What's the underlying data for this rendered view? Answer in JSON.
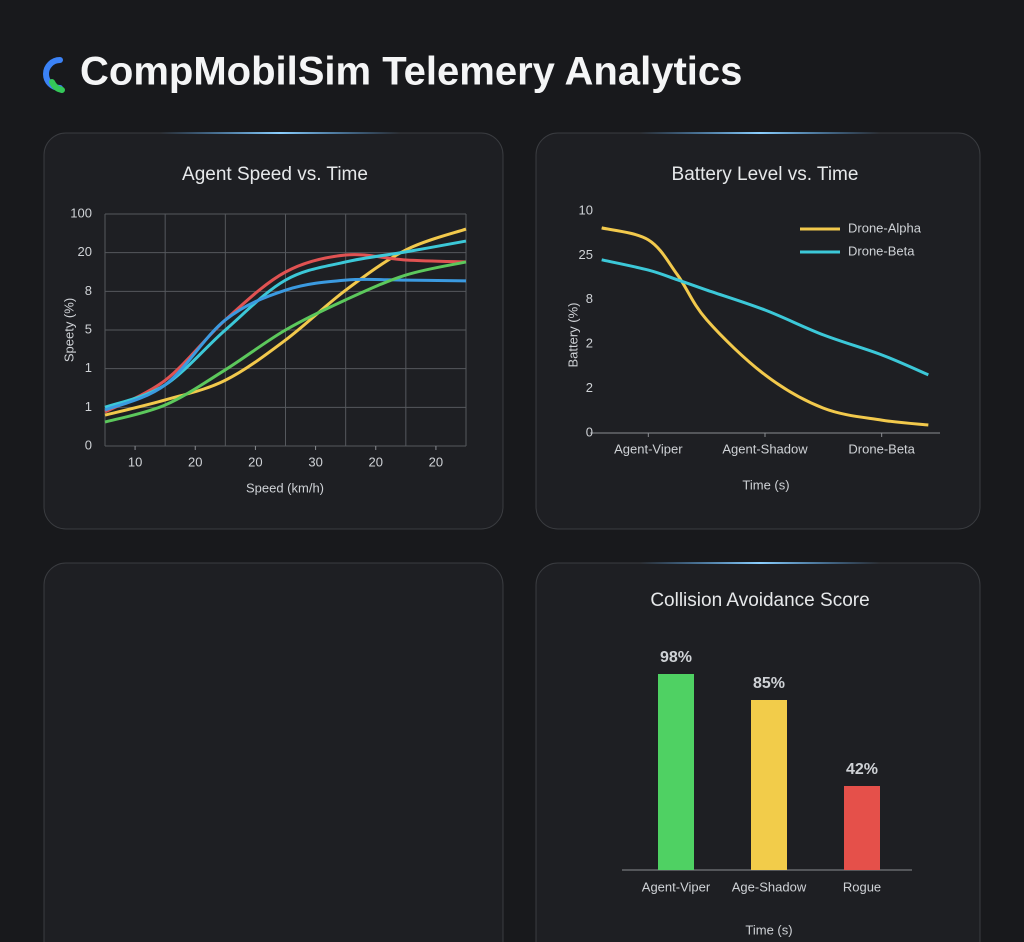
{
  "header": {
    "title": "CompMobilSim Telemery Analytics"
  },
  "chart_data": [
    {
      "type": "line",
      "title": "Agent Speed vs. Time",
      "x_label": "Speed (km/h)",
      "y_label": "Speety (%)",
      "x": [
        0,
        1,
        2,
        3,
        4,
        5,
        6
      ],
      "xlim": [
        0,
        6
      ],
      "ylim": [
        0,
        6
      ],
      "grid": true,
      "xticks": [
        {
          "value": 0.5,
          "label": "10"
        },
        {
          "value": 1.5,
          "label": "20"
        },
        {
          "value": 2.5,
          "label": "20"
        },
        {
          "value": 3.5,
          "label": "30"
        },
        {
          "value": 4.5,
          "label": "20"
        },
        {
          "value": 5.5,
          "label": "20"
        }
      ],
      "yticks": [
        0,
        1,
        {
          "value": 2,
          "label": "1"
        },
        {
          "value": 3,
          "label": "5"
        },
        {
          "value": 4,
          "label": "8"
        },
        {
          "value": 5,
          "label": "20"
        },
        {
          "value": 6,
          "label": "100"
        }
      ],
      "series": [
        {
          "color": "#f2c94c",
          "values": [
            0.8,
            1.19,
            1.7,
            2.74,
            4.03,
            5.07,
            5.61
          ]
        },
        {
          "color": "#e05252",
          "values": [
            0.88,
            1.7,
            3.26,
            4.5,
            4.94,
            4.81,
            4.76
          ]
        },
        {
          "color": "#3cc8d8",
          "values": [
            1.0,
            1.58,
            3.0,
            4.29,
            4.76,
            5.02,
            5.3
          ]
        },
        {
          "color": "#3b9ae0",
          "values": [
            0.93,
            1.58,
            3.26,
            4.03,
            4.29,
            4.29,
            4.27
          ]
        },
        {
          "color": "#5cc85c",
          "values": [
            0.62,
            1.06,
            1.97,
            3.0,
            3.78,
            4.42,
            4.76
          ]
        }
      ]
    },
    {
      "type": "line",
      "title": "Battery Level vs. Time",
      "x_label": "Time (s)",
      "y_label": "Battery (%)",
      "x": [
        0.1,
        0.5,
        0.75,
        1,
        1.5,
        2,
        2.5,
        2.9
      ],
      "xlim": [
        0,
        3
      ],
      "ylim": [
        0,
        5
      ],
      "grid": false,
      "legend": "top-right",
      "xticks": [
        {
          "value": 0.5,
          "label": "Agent-Viper"
        },
        {
          "value": 1.5,
          "label": "Agent-Shadow"
        },
        {
          "value": 2.5,
          "label": "Drone-Beta"
        }
      ],
      "yticks": [
        0,
        {
          "value": 1,
          "label": "2"
        },
        2,
        {
          "value": 3,
          "label": "8"
        },
        {
          "value": 4,
          "label": "25"
        },
        {
          "value": 5,
          "label": "10"
        }
      ],
      "series": [
        {
          "name": "Drone-Alpha",
          "color": "#f2c94c",
          "values": [
            4.62,
            4.35,
            3.56,
            2.55,
            1.31,
            0.56,
            0.29,
            0.18
          ]
        },
        {
          "name": "Drone-Beta",
          "color": "#3cc8d8",
          "values": [
            3.9,
            3.67,
            3.45,
            3.22,
            2.77,
            2.21,
            1.76,
            1.31
          ]
        }
      ]
    },
    {
      "type": "bar",
      "title": "Collision Avoidance Score",
      "x_label": "Time (s)",
      "categories": [
        "Agent-Viper",
        "Age-Shadow",
        "Rogue"
      ],
      "values": [
        98,
        85,
        42
      ],
      "value_labels": [
        "98%",
        "85%",
        "42%"
      ],
      "colors": [
        "#4fd163",
        "#f2cc4a",
        "#e5504a"
      ]
    }
  ]
}
